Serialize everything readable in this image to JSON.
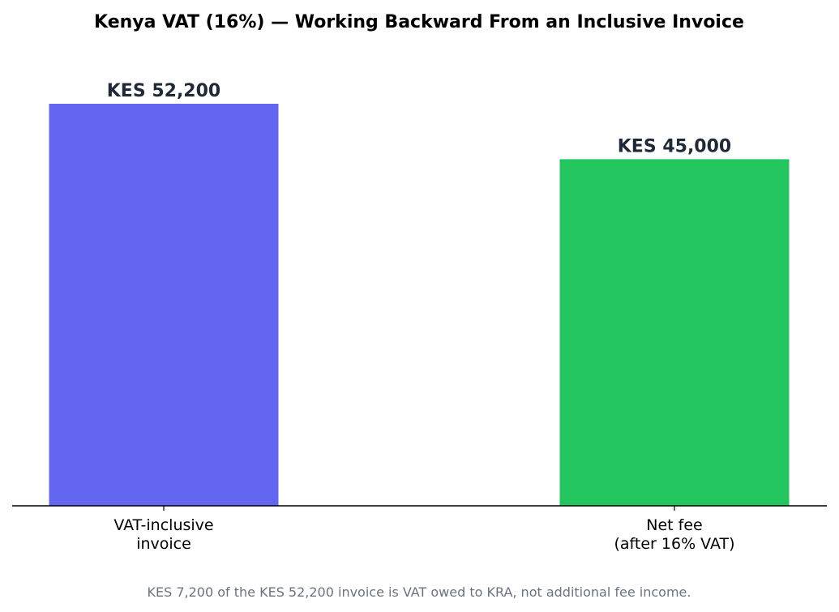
{
  "chart_data": {
    "type": "bar",
    "title": "Kenya VAT (16%) — Working Backward From an Inclusive Invoice",
    "xlabel": "",
    "ylabel": "",
    "categories": [
      [
        "VAT-inclusive",
        "invoice"
      ],
      [
        "Net fee",
        "(after 16% VAT)"
      ]
    ],
    "values": [
      52200,
      45000
    ],
    "value_labels": [
      "KES 52,200",
      "KES 45,000"
    ],
    "colors": [
      "#6366f1",
      "#22c55e"
    ],
    "ylim": [
      0,
      55000
    ],
    "grid": false,
    "caption": "KES 7,200 of the KES 52,200 invoice is VAT owed to KRA, not additional fee income."
  }
}
